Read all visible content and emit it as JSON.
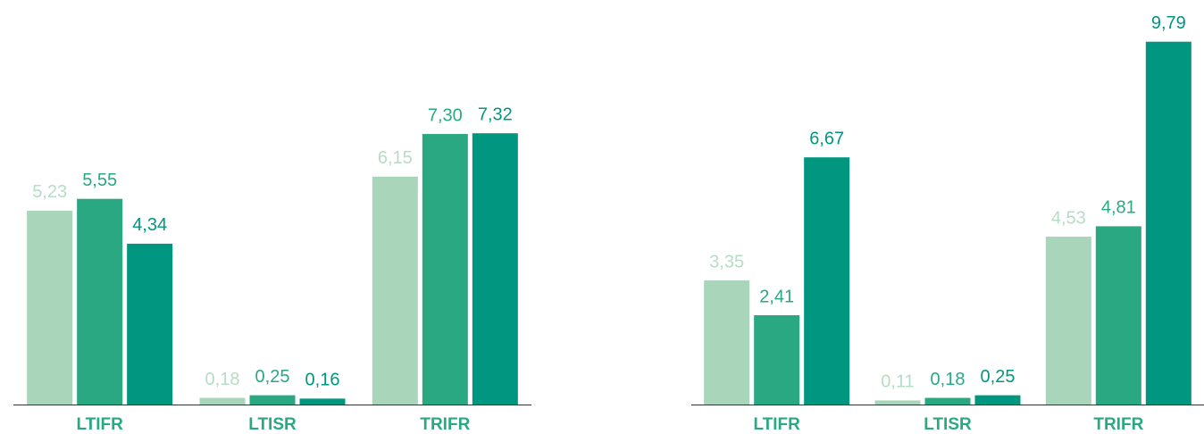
{
  "chart_data": [
    {
      "type": "bar",
      "categories": [
        "LTIFR",
        "LTISR",
        "TRIFR"
      ],
      "ylim": [
        0,
        10
      ],
      "series": [
        {
          "color": "#a9d5bb",
          "values": [
            5.23,
            0.18,
            6.15
          ],
          "value_labels": [
            "5,23",
            "0,18",
            "6,15"
          ]
        },
        {
          "color": "#2aa882",
          "values": [
            5.55,
            0.25,
            7.3
          ],
          "value_labels": [
            "5,55",
            "0,25",
            "7,30"
          ]
        },
        {
          "color": "#00967f",
          "values": [
            4.34,
            0.16,
            7.32
          ],
          "value_labels": [
            "4,34",
            "0,16",
            "7,32"
          ]
        }
      ]
    },
    {
      "type": "bar",
      "categories": [
        "LTIFR",
        "LTISR",
        "TRIFR"
      ],
      "ylim": [
        0,
        10
      ],
      "series": [
        {
          "color": "#a9d5bb",
          "values": [
            3.35,
            0.11,
            4.53
          ],
          "value_labels": [
            "3,35",
            "0,11",
            "4,53"
          ]
        },
        {
          "color": "#2aa882",
          "values": [
            2.41,
            0.18,
            4.81
          ],
          "value_labels": [
            "2,41",
            "0,18",
            "4,81"
          ]
        },
        {
          "color": "#00967f",
          "values": [
            6.67,
            0.25,
            9.79
          ],
          "value_labels": [
            "6,67",
            "0,25",
            "9,79"
          ]
        }
      ]
    }
  ]
}
